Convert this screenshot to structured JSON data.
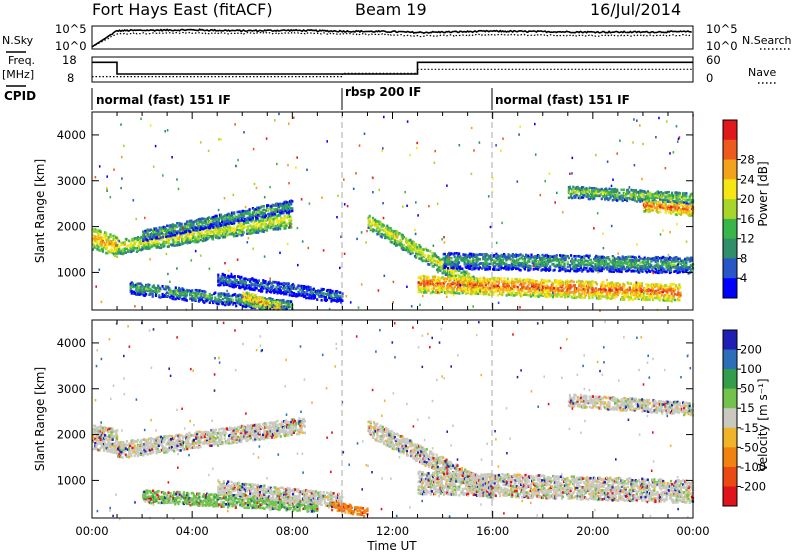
{
  "header": {
    "radar": "Fort Hays East (fitACF)",
    "beam": "Beam 19",
    "date": "16/Jul/2014"
  },
  "left_labels": {
    "nsky": "N.Sky",
    "freq": "Freq.",
    "freq_unit": "[MHz]",
    "cpid": "CPID"
  },
  "right_labels": {
    "nsearch": "N.Search",
    "nave": "Nave"
  },
  "colors": {
    "power_scale": [
      "#0000ff",
      "#2855c8",
      "#2f8f6a",
      "#3ab54a",
      "#a8d52a",
      "#f6e614",
      "#f5a21b",
      "#ee5a1e",
      "#e0181c"
    ],
    "velocity_scale": [
      "#1f1fb4",
      "#2c6fb8",
      "#339d4a",
      "#72c24d",
      "#c9c9c0",
      "#f0b429",
      "#f2820f",
      "#ea4a12",
      "#e1131a"
    ],
    "dashed_marker": "#aaaaaa"
  },
  "chart_data": [
    {
      "type": "line",
      "panel": "noise",
      "series": [
        {
          "name": "N.Sky",
          "style": "solid"
        },
        {
          "name": "N.Search",
          "style": "dotted"
        }
      ],
      "y_ticks_left": [
        "10^5",
        "10^0"
      ],
      "y_ticks_right": [
        "10^5",
        "10^0"
      ],
      "x": [
        0,
        1,
        2,
        4,
        6,
        8,
        10,
        12,
        13,
        14,
        16,
        18,
        20,
        22,
        24
      ],
      "sky_log": [
        0.5,
        4.2,
        4.3,
        4.4,
        4.2,
        4.3,
        4.1,
        4.0,
        3.8,
        3.9,
        4.1,
        4.0,
        3.9,
        3.9,
        4.0
      ],
      "search_log": [
        0.5,
        3.5,
        3.6,
        3.7,
        3.6,
        3.7,
        3.5,
        3.3,
        3.0,
        3.1,
        3.3,
        3.2,
        3.1,
        3.1,
        3.2
      ]
    },
    {
      "type": "line",
      "panel": "frequency",
      "series": [
        {
          "name": "Freq.",
          "style": "solid"
        },
        {
          "name": "Nave",
          "style": "dotted"
        }
      ],
      "y_ticks_left": [
        "18",
        "8"
      ],
      "y_ticks_right": [
        "60",
        "0"
      ],
      "freq_steps": [
        [
          0,
          1,
          16.5
        ],
        [
          1,
          13,
          11.2
        ],
        [
          13,
          24,
          16.5
        ]
      ],
      "nave_steps": [
        [
          0,
          1,
          12
        ],
        [
          1,
          10,
          12
        ],
        [
          10,
          13,
          21
        ],
        [
          13,
          24,
          32
        ]
      ]
    },
    {
      "type": "table",
      "panel": "cpid",
      "segments": [
        {
          "start": 0,
          "end": 10,
          "label": "normal (fast) 151 IF"
        },
        {
          "start": 10,
          "end": 16,
          "label": "rbsp 200 IF"
        },
        {
          "start": 16,
          "end": 24,
          "label": "normal (fast) 151 IF"
        }
      ]
    },
    {
      "type": "heatmap",
      "panel": "power",
      "ylabel": "Slant Range [km]",
      "ylim": [
        180,
        4500
      ],
      "y_ticks": [
        1000,
        2000,
        3000,
        4000
      ],
      "xlim": [
        0,
        24
      ],
      "colorbar_label": "Power [dB]",
      "colorbar_ticks": [
        "4",
        "8",
        "12",
        "16",
        "20",
        "24",
        "28"
      ],
      "bands": [
        {
          "x0": 0.0,
          "x1": 1.0,
          "r0": 1800,
          "r1": 1600,
          "thick": 450,
          "level": 6
        },
        {
          "x0": 1.0,
          "x1": 8.0,
          "r0": 1600,
          "r1": 2200,
          "thick": 330,
          "level": 5
        },
        {
          "x0": 2.0,
          "x1": 8.0,
          "r0": 1850,
          "r1": 2500,
          "thick": 250,
          "level": 3
        },
        {
          "x0": 1.5,
          "x1": 8.0,
          "r0": 700,
          "r1": 300,
          "thick": 260,
          "level": 3
        },
        {
          "x0": 6.0,
          "x1": 7.5,
          "r0": 500,
          "r1": 250,
          "thick": 280,
          "level": 6
        },
        {
          "x0": 5.0,
          "x1": 10.0,
          "r0": 900,
          "r1": 500,
          "thick": 260,
          "level": 2
        },
        {
          "x0": 11.0,
          "x1": 15.5,
          "r0": 2150,
          "r1": 700,
          "thick": 330,
          "level": 5
        },
        {
          "x0": 13.0,
          "x1": 23.5,
          "r0": 800,
          "r1": 600,
          "thick": 380,
          "level": 7
        },
        {
          "x0": 14.0,
          "x1": 24.0,
          "r0": 1300,
          "r1": 1200,
          "thick": 350,
          "level": 3
        },
        {
          "x0": 19.0,
          "x1": 24.0,
          "r0": 2800,
          "r1": 2650,
          "thick": 250,
          "level": 4
        },
        {
          "x0": 22.0,
          "x1": 24.0,
          "r0": 2500,
          "r1": 2400,
          "thick": 250,
          "level": 7
        }
      ]
    },
    {
      "type": "heatmap",
      "panel": "velocity",
      "ylabel": "Slant Range [km]",
      "xlabel": "Time UT",
      "ylim": [
        180,
        4500
      ],
      "y_ticks": [
        1000,
        2000,
        3000,
        4000
      ],
      "xlim": [
        0,
        24
      ],
      "x_ticks": [
        "00:00",
        "04:00",
        "08:00",
        "12:00",
        "16:00",
        "20:00",
        "00:00"
      ],
      "colorbar_label": "Velocity [m s⁻¹]",
      "colorbar_ticks": [
        "200",
        "100",
        "50",
        "15",
        "-15",
        "-50",
        "-100",
        "-200"
      ],
      "bands": [
        {
          "x0": 0.0,
          "x1": 1.0,
          "r0": 2000,
          "r1": 1900,
          "thick": 550,
          "level": 4
        },
        {
          "x0": 1.0,
          "x1": 8.5,
          "r0": 1700,
          "r1": 2250,
          "thick": 360,
          "level": 4
        },
        {
          "x0": 2.0,
          "x1": 9.0,
          "r0": 700,
          "r1": 500,
          "thick": 280,
          "level": 3
        },
        {
          "x0": 5.0,
          "x1": 10.0,
          "r0": 900,
          "r1": 600,
          "thick": 300,
          "level": 4
        },
        {
          "x0": 9.5,
          "x1": 11.0,
          "r0": 500,
          "r1": 350,
          "thick": 200,
          "level": 6
        },
        {
          "x0": 11.0,
          "x1": 16.0,
          "r0": 2200,
          "r1": 800,
          "thick": 380,
          "level": 4
        },
        {
          "x0": 13.0,
          "x1": 24.0,
          "r0": 1000,
          "r1": 800,
          "thick": 500,
          "level": 4
        },
        {
          "x0": 19.0,
          "x1": 24.0,
          "r0": 2800,
          "r1": 2600,
          "thick": 280,
          "level": 4
        }
      ]
    }
  ]
}
